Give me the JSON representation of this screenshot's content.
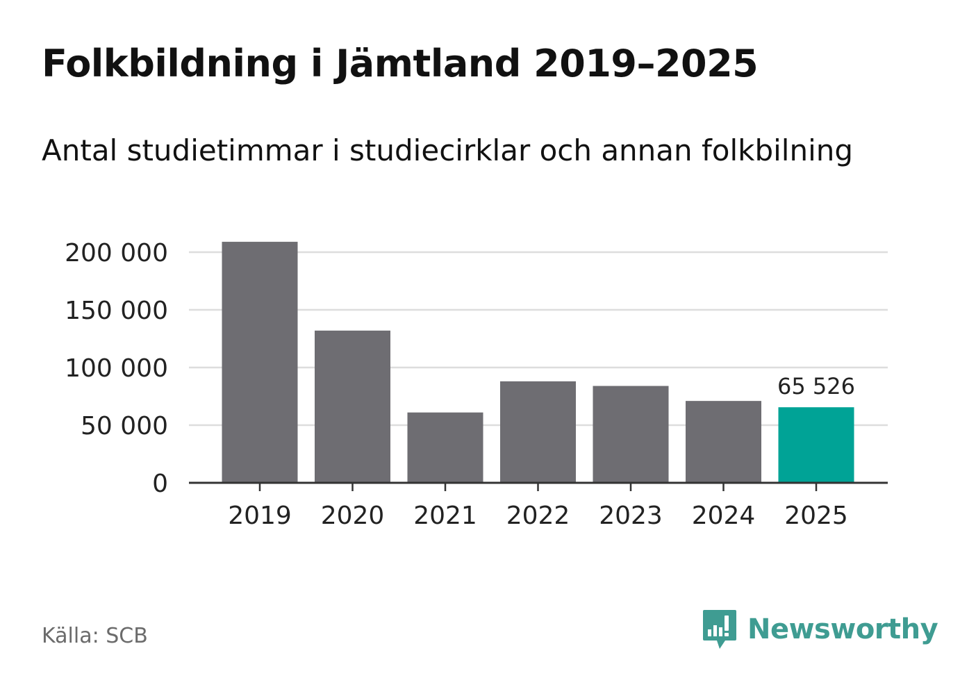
{
  "header": {
    "title": "Folkbildning i Jämtland 2019–2025",
    "subtitle": "Antal studietimmar i studiecirklar och annan folkbilning"
  },
  "footer": {
    "source": "Källa: SCB",
    "brand_name": "Newsworthy"
  },
  "colors": {
    "bar_default": "#6e6d72",
    "bar_highlight": "#00a396",
    "grid": "#dddddd",
    "axis": "#333333",
    "text": "#222222",
    "brand": "#3f9c92"
  },
  "chart_data": {
    "type": "bar",
    "title": "Folkbildning i Jämtland 2019–2025",
    "subtitle": "Antal studietimmar i studiecirklar och annan folkbilning",
    "xlabel": "",
    "ylabel": "",
    "categories": [
      "2019",
      "2020",
      "2021",
      "2022",
      "2023",
      "2024",
      "2025"
    ],
    "values": [
      209000,
      132000,
      61000,
      88000,
      84000,
      71000,
      65526
    ],
    "highlight_index": 6,
    "data_labels": [
      {
        "index": 6,
        "text": "65 526"
      }
    ],
    "ylim": [
      0,
      200000
    ],
    "yticks": [
      0,
      50000,
      100000,
      150000,
      200000
    ],
    "ytick_labels": [
      "0",
      "50 000",
      "100 000",
      "150 000",
      "200 000"
    ],
    "grid": true,
    "legend": "none"
  }
}
